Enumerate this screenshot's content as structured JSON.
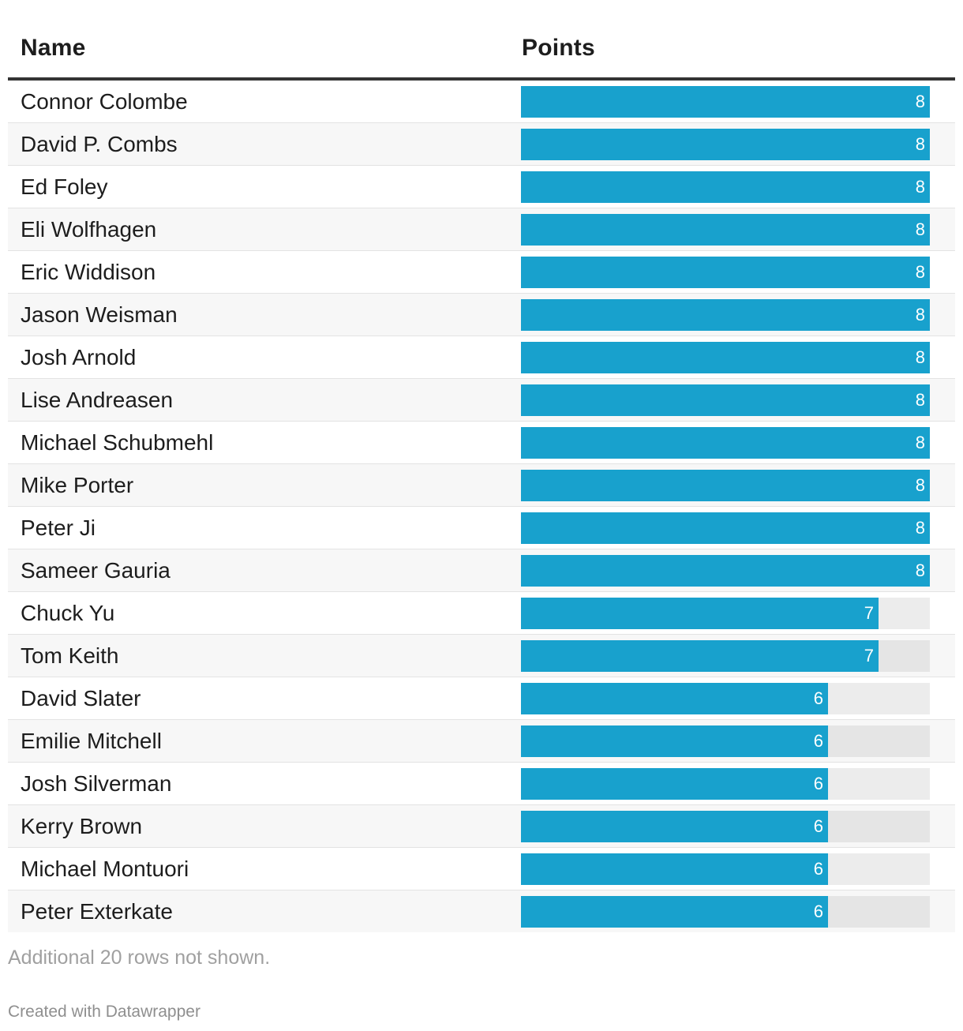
{
  "header": {
    "name_label": "Name",
    "points_label": "Points"
  },
  "chart_data": {
    "type": "bar",
    "orientation": "horizontal",
    "categories": [
      "Connor Colombe",
      "David P. Combs",
      "Ed Foley",
      "Eli Wolfhagen",
      "Eric Widdison",
      "Jason Weisman",
      "Josh Arnold",
      "Lise Andreasen",
      "Michael Schubmehl",
      "Mike Porter",
      "Peter Ji",
      "Sameer Gauria",
      "Chuck Yu",
      "Tom Keith",
      "David Slater",
      "Emilie Mitchell",
      "Josh Silverman",
      "Kerry Brown",
      "Michael Montuori",
      "Peter Exterkate"
    ],
    "values": [
      8,
      8,
      8,
      8,
      8,
      8,
      8,
      8,
      8,
      8,
      8,
      8,
      7,
      7,
      6,
      6,
      6,
      6,
      6,
      6
    ],
    "xlim": [
      0,
      8
    ],
    "bar_color": "#18a1cd",
    "track_color": "#ececec"
  },
  "footer": {
    "note": "Additional 20 rows not shown.",
    "credit": "Created with Datawrapper"
  }
}
